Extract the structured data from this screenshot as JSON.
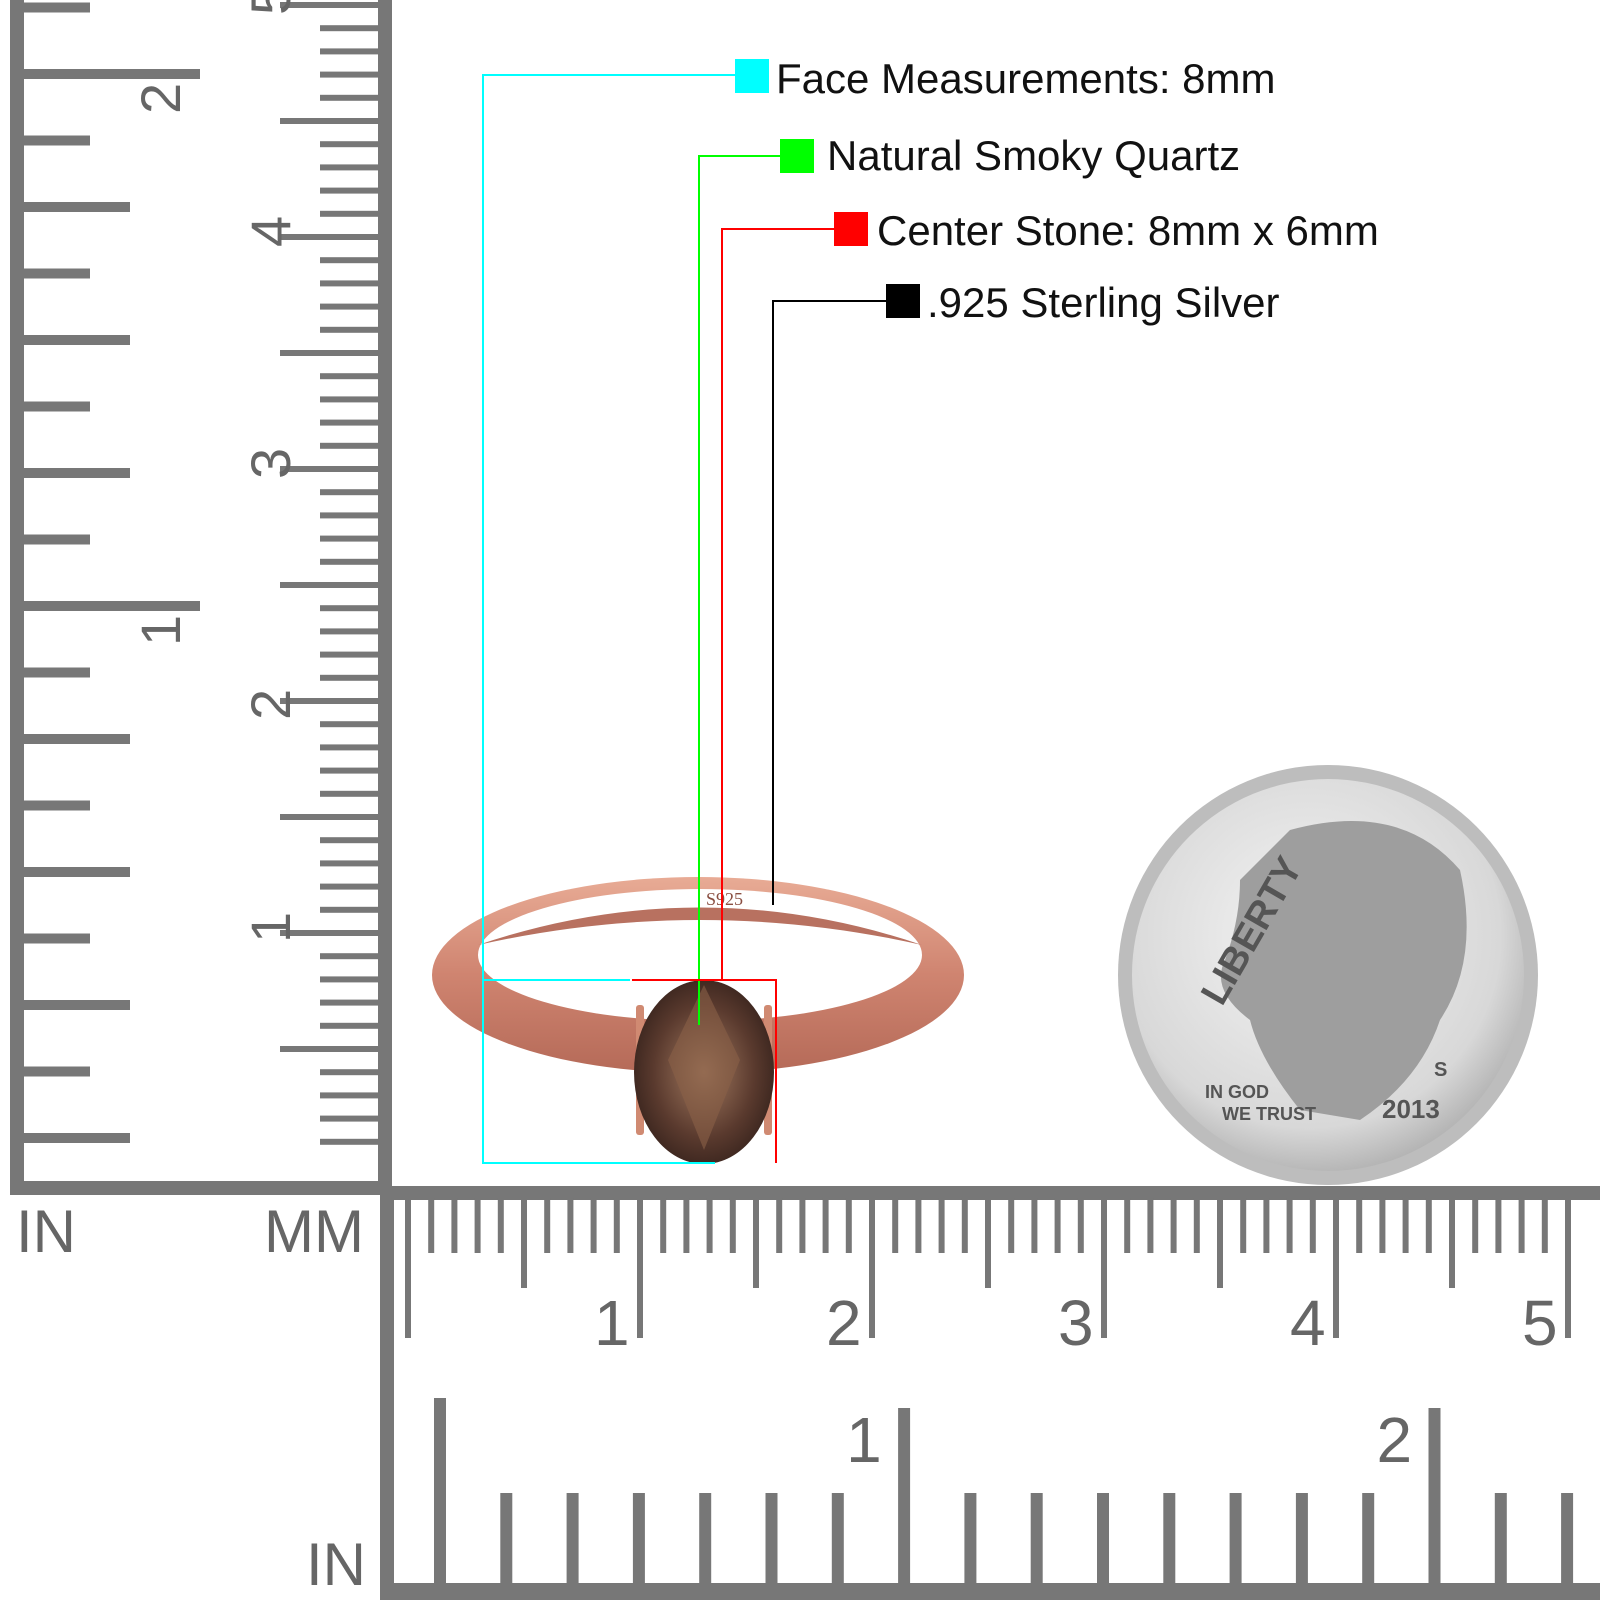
{
  "legend": [
    {
      "label": "Face Measurements: 8mm",
      "color": "#00ffff"
    },
    {
      "label": "Natural Smoky Quartz",
      "color": "#00ff00"
    },
    {
      "label": "Center Stone: 8mm x 6mm",
      "color": "#ff0000"
    },
    {
      "label": ".925 Sterling Silver",
      "color": "#000000"
    }
  ],
  "ruler": {
    "left_in_label": "IN",
    "left_mm_label": "MM",
    "bottom_in_label": "IN",
    "cm_numbers": [
      "1",
      "2",
      "3",
      "4",
      "5"
    ],
    "in_numbers": [
      "1",
      "2"
    ],
    "color": "#777777"
  },
  "ring": {
    "stamp": "S925",
    "metal_color": "#d9907a",
    "stone_color": "#5a3a2e"
  },
  "coin": {
    "legend_top": "LIBERTY",
    "motto_1": "IN GOD",
    "motto_2": "WE TRUST",
    "year": "2013",
    "mint_mark": "S"
  }
}
